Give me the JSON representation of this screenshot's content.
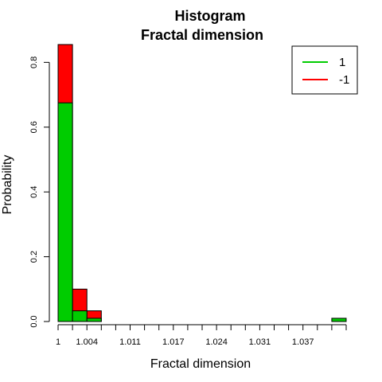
{
  "chart_data": {
    "type": "bar",
    "title": "Histogram",
    "subtitle": "Fractal dimension",
    "xlabel": "Fractal dimension",
    "ylabel": "Probability",
    "x_ticks": [
      "1",
      "1.004",
      "1.011",
      "1.017",
      "1.024",
      "1.031",
      "1.037"
    ],
    "y_ticks": [
      "0.0",
      "0.2",
      "0.4",
      "0.6",
      "0.8"
    ],
    "ylim": [
      0,
      0.85
    ],
    "bin_count": 20,
    "series": [
      {
        "name": "-1",
        "color": "#ff0000",
        "values": [
          0.855,
          0.1,
          0.033,
          0,
          0,
          0,
          0,
          0,
          0,
          0,
          0,
          0,
          0,
          0,
          0,
          0,
          0,
          0,
          0,
          0
        ]
      },
      {
        "name": "1",
        "color": "#00cc00",
        "values": [
          0.675,
          0.033,
          0.01,
          0,
          0,
          0,
          0,
          0,
          0,
          0,
          0,
          0,
          0,
          0,
          0,
          0,
          0,
          0,
          0,
          0.01
        ]
      }
    ],
    "legend": {
      "placement": "top-right",
      "entries": [
        {
          "label": "1",
          "color": "#00cc00"
        },
        {
          "label": "-1",
          "color": "#ff0000"
        }
      ]
    }
  }
}
